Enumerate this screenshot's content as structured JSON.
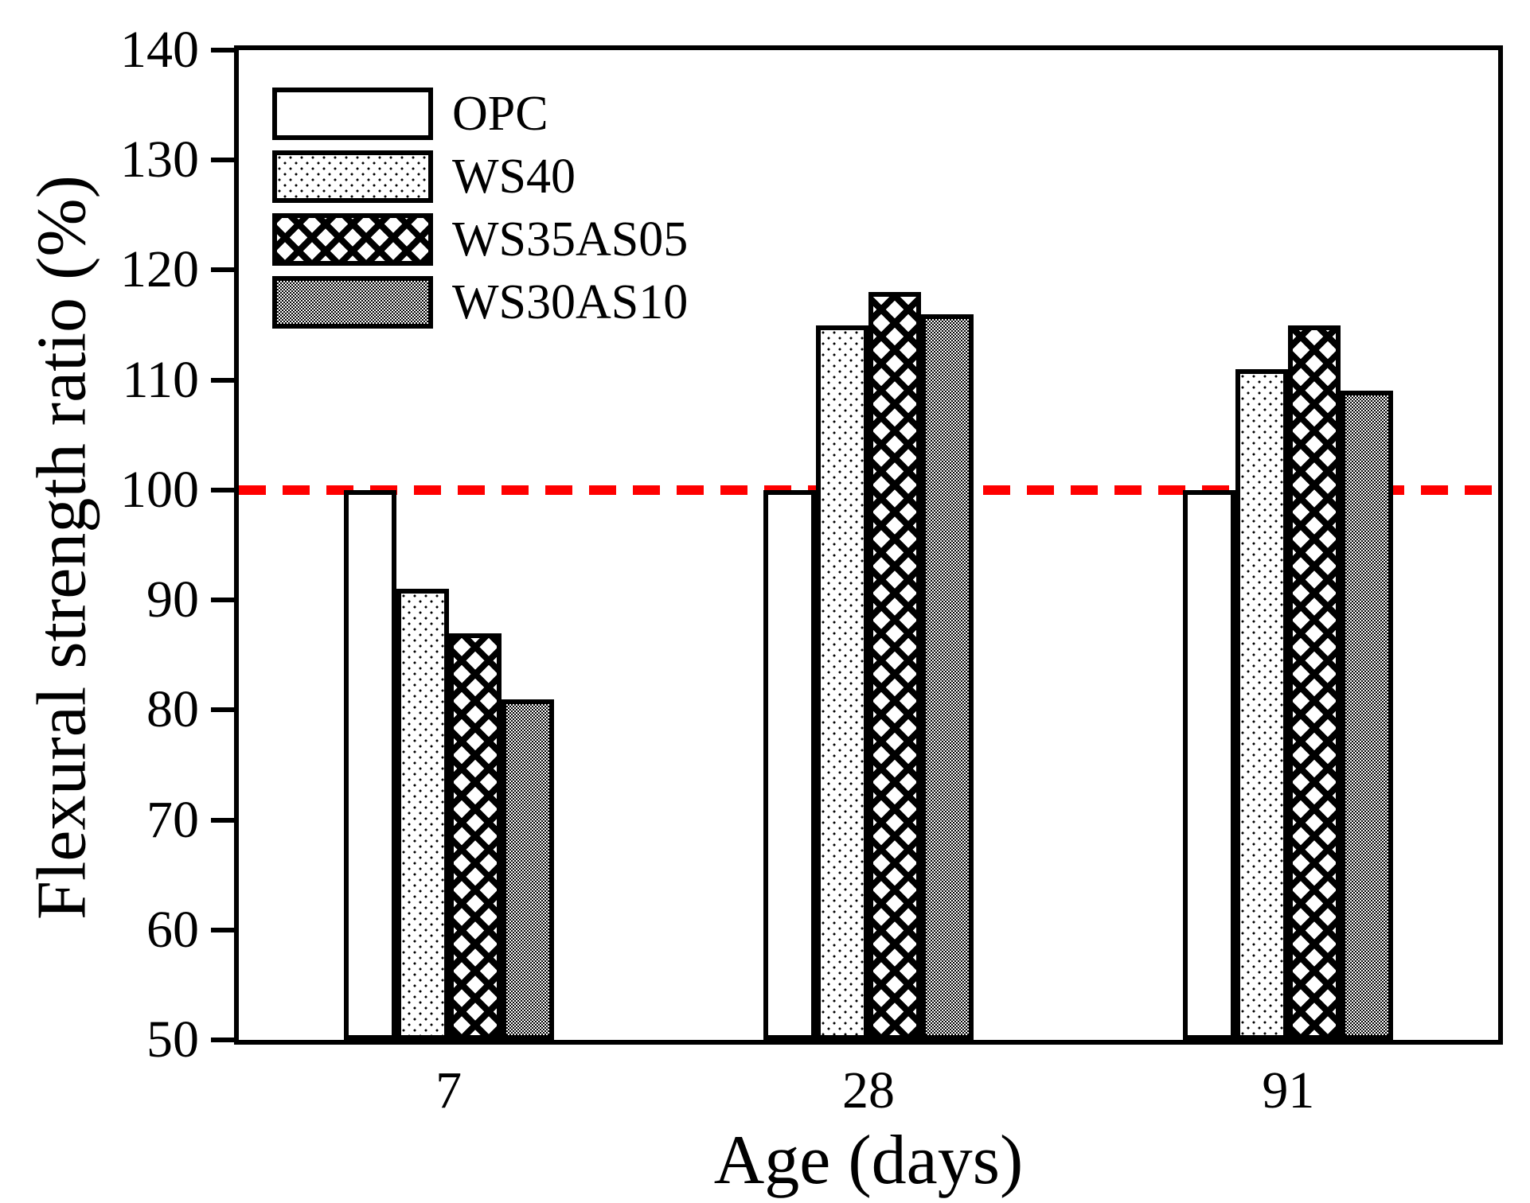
{
  "chart_data": {
    "type": "bar",
    "title": "",
    "xlabel": "Age (days)",
    "ylabel": "Flexural strength ratio (%)",
    "categories": [
      "7",
      "28",
      "91"
    ],
    "series": [
      {
        "name": "OPC",
        "pattern": "plain-white",
        "values": [
          100,
          100,
          100
        ]
      },
      {
        "name": "WS40",
        "pattern": "fine-dots",
        "values": [
          91,
          115,
          111
        ]
      },
      {
        "name": "WS35AS05",
        "pattern": "crosshatch",
        "values": [
          87,
          118,
          115
        ]
      },
      {
        "name": "WS30AS10",
        "pattern": "solid-gray",
        "values": [
          81,
          116,
          109
        ]
      }
    ],
    "ylim": [
      50,
      140
    ],
    "yticks": [
      50,
      60,
      70,
      80,
      90,
      100,
      110,
      120,
      130,
      140
    ],
    "grid": false,
    "legend_position": "top-left-inside",
    "reference_line": {
      "value": 100,
      "color": "#ff0000",
      "style": "dashed",
      "thickness_px": 12
    },
    "colors": {
      "axis": "#000000",
      "bar_border": "#000000",
      "gray_fill": "#8f8f8f",
      "reference": "#ff0000"
    }
  }
}
